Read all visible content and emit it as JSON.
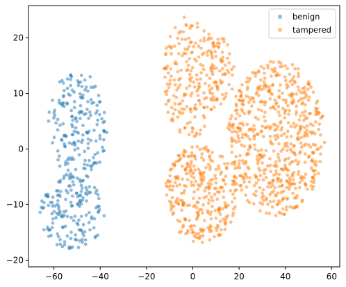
{
  "chart_data": {
    "type": "scatter",
    "title": "",
    "xlabel": "",
    "ylabel": "",
    "xlim": [
      -71,
      63.5
    ],
    "ylim": [
      -21.2,
      25.8
    ],
    "xticks": [
      -60,
      -40,
      -20,
      0,
      20,
      40,
      60
    ],
    "yticks": [
      -20,
      -10,
      0,
      10,
      20
    ],
    "xtick_labels": [
      "−60",
      "−40",
      "−20",
      "0",
      "20",
      "40",
      "60"
    ],
    "ytick_labels": [
      "−20",
      "−10",
      "0",
      "10",
      "20"
    ],
    "grid": false,
    "legend_position": "top-right",
    "series": [
      {
        "name": "benign",
        "color": "#1f77b4",
        "alpha": 0.5,
        "clusters": [
          {
            "cx": -50,
            "cy": 4,
            "rx": 13,
            "ry": 10,
            "n": 190,
            "ytop": 14
          },
          {
            "cx": -52,
            "cy": -11.5,
            "rx": 14,
            "ry": 6.5,
            "n": 160,
            "ybottom": -19
          }
        ]
      },
      {
        "name": "tampered",
        "color": "#ff7f0e",
        "alpha": 0.5,
        "clusters": [
          {
            "cx": -1,
            "cy": 13,
            "rx": 12,
            "ry": 11,
            "n": 200,
            "ytop": 25
          },
          {
            "cx": 12,
            "cy": 14,
            "rx": 6,
            "ry": 6,
            "n": 60
          },
          {
            "cx": 4,
            "cy": -8,
            "rx": 16,
            "ry": 9,
            "n": 300,
            "ybottom": -19
          },
          {
            "cx": 36,
            "cy": 2,
            "rx": 21,
            "ry": 14,
            "n": 600,
            "ytop": 17,
            "ybottom": -16
          }
        ]
      }
    ]
  }
}
